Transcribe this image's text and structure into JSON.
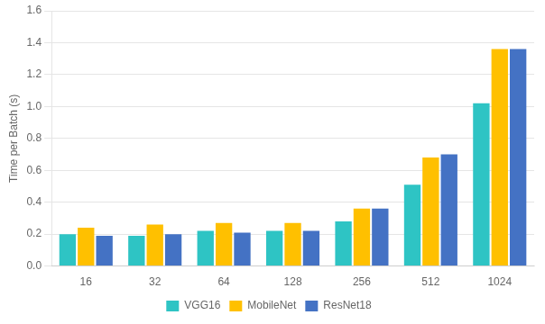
{
  "chart_data": {
    "type": "bar",
    "categories": [
      "16",
      "32",
      "64",
      "128",
      "256",
      "512",
      "1024"
    ],
    "series": [
      {
        "name": "VGG16",
        "color": "#2ec4c4",
        "values": [
          0.2,
          0.19,
          0.22,
          0.22,
          0.28,
          0.51,
          1.02
        ]
      },
      {
        "name": "MobileNet",
        "color": "#ffc000",
        "values": [
          0.24,
          0.26,
          0.27,
          0.27,
          0.36,
          0.68,
          1.36
        ]
      },
      {
        "name": "ResNet18",
        "color": "#4472c4",
        "values": [
          0.19,
          0.2,
          0.21,
          0.22,
          0.36,
          0.7,
          1.36
        ]
      }
    ],
    "ylabel": "Time per Batch (s)",
    "ylim": [
      0,
      1.6
    ],
    "yticks": [
      {
        "value": 0,
        "label": "0.0"
      },
      0.2,
      0.4,
      0.6,
      0.8,
      {
        "value": 1,
        "label": "1.0"
      },
      1.2,
      1.4,
      1.6
    ],
    "grid": true,
    "legend": "bottom"
  }
}
